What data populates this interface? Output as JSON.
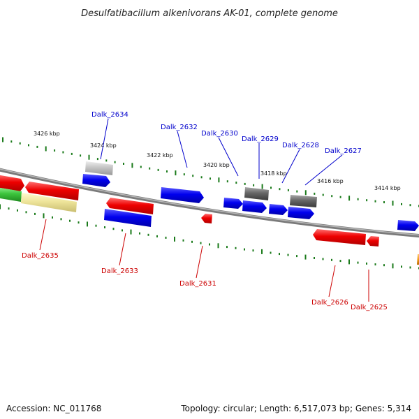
{
  "title": "Desulfatibacillum alkenivorans AK-01, complete genome",
  "accession_text": "Accession: NC_011768",
  "topology_text": "Topology: circular; Length: 6,517,073 bp; Genes: 5,314",
  "colors": {
    "forward_gene": "#0000ee",
    "reverse_gene": "#ee0000",
    "forward_label": "#0000cc",
    "reverse_label": "#cc0000",
    "backbone": "#8c8c8c",
    "tick": "#1a7a1a",
    "other_gene": "#666666",
    "pseudo_gene": "#bdbdbd",
    "green_gene": "#3cc43c",
    "yellow_gene": "#eee49a",
    "orange_gene": "#f29a18"
  },
  "scale_labels": [
    "3426 kbp",
    "3424 kbp",
    "3422 kbp",
    "3420 kbp",
    "3418 kbp",
    "3416 kbp",
    "3414 kbp"
  ],
  "gene_labels": {
    "forward": [
      "Dalk_2634",
      "Dalk_2632",
      "Dalk_2630",
      "Dalk_2629",
      "Dalk_2628",
      "Dalk_2627"
    ],
    "reverse": [
      "Dalk_2635",
      "Dalk_2633",
      "Dalk_2631",
      "Dalk_2626",
      "Dalk_2625"
    ]
  }
}
